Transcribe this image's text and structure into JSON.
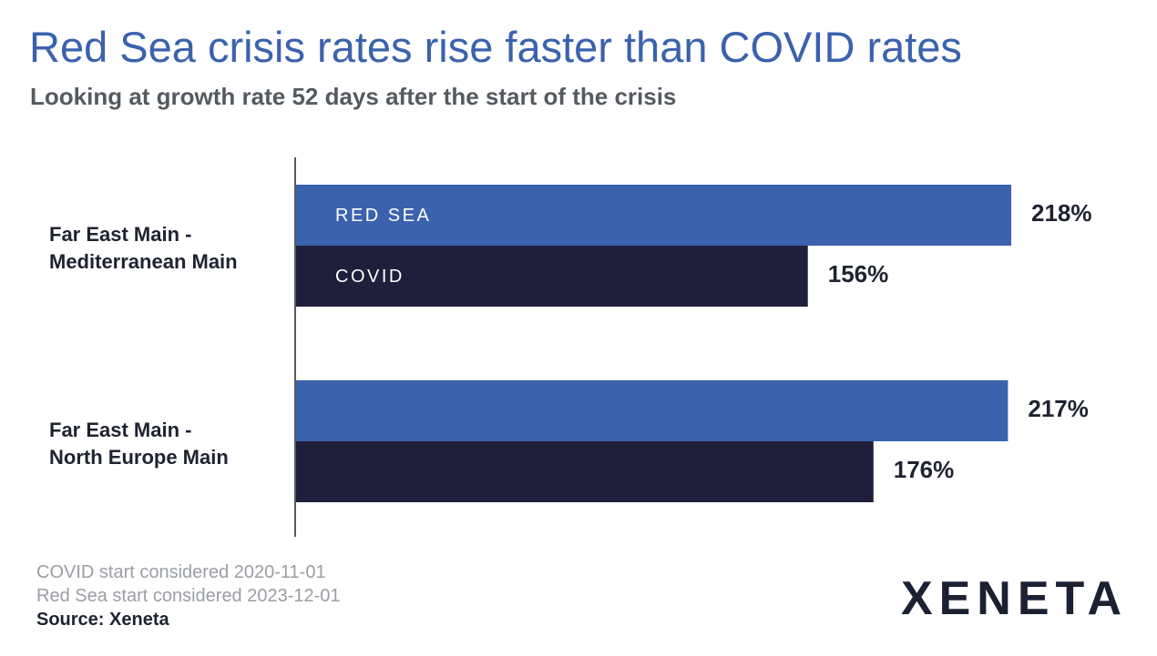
{
  "title": "Red Sea crisis rates rise faster than COVID rates",
  "subtitle": "Looking at growth rate 52 days after the start of the crisis",
  "footnotes": {
    "covid_start": "COVID start considered 2020-11-01",
    "redsea_start": "Red Sea start considered 2023-12-01",
    "source": "Source: Xeneta"
  },
  "logo_text": "XENETA",
  "colors": {
    "red_sea": "#3a62ad",
    "covid": "#1f1f3b",
    "title": "#3a62ad"
  },
  "chart_data": {
    "type": "bar",
    "orientation": "horizontal",
    "title": "Red Sea crisis rates rise faster than COVID rates",
    "subtitle": "Looking at growth rate 52 days after the start of the crisis",
    "categories": [
      [
        "Far East Main -",
        "Mediterranean Main"
      ],
      [
        "Far East Main -",
        "North Europe Main"
      ]
    ],
    "series": [
      {
        "name": "RED SEA",
        "values": [
          218,
          217
        ],
        "labels": [
          "218%",
          "217%"
        ]
      },
      {
        "name": "COVID",
        "values": [
          156,
          176
        ],
        "labels": [
          "156%",
          "176%"
        ]
      }
    ],
    "xlim": [
      0,
      300
    ],
    "grid": false
  }
}
